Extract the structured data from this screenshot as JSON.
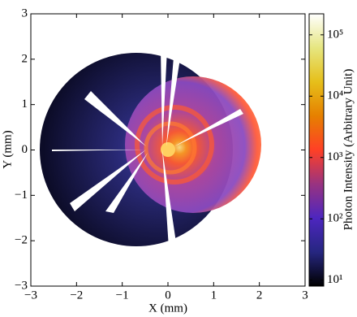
{
  "chart_data": {
    "type": "heatmap",
    "xlabel": "X (mm)",
    "ylabel": "Y (mm)",
    "xlim": [
      -3,
      3
    ],
    "ylim": [
      -3,
      3
    ],
    "xticks": [
      {
        "value": -3,
        "label": "−3"
      },
      {
        "value": -2,
        "label": "−2"
      },
      {
        "value": -1,
        "label": "−1"
      },
      0,
      1,
      2,
      3
    ],
    "yticks": [
      {
        "value": -3,
        "label": "−3"
      },
      {
        "value": -2,
        "label": "−2"
      },
      {
        "value": -1,
        "label": "−1"
      },
      0,
      1,
      2,
      3
    ],
    "colorbar": {
      "label": "Photon Intensity (Arbitrary Unit)",
      "scale": "log",
      "colormap": "CMRmap",
      "lim": [
        8,
        220000
      ],
      "ticks": [
        {
          "value": 10,
          "label": "10¹"
        },
        {
          "value": 100,
          "label": "10²"
        },
        {
          "value": 1000,
          "label": "10³"
        },
        {
          "value": 10000,
          "label": "10⁴"
        },
        {
          "value": 100000,
          "label": "10⁵"
        }
      ]
    }
  }
}
